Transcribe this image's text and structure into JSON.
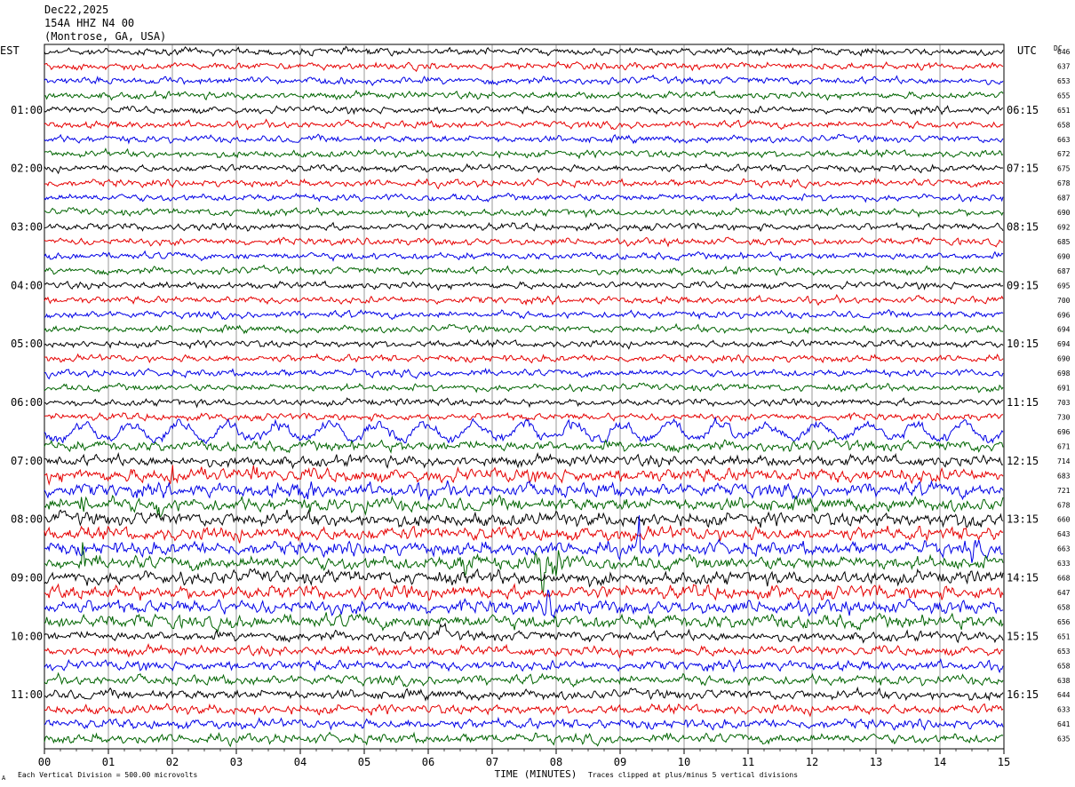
{
  "header": {
    "date": "Dec22,2025",
    "station": "154A HHZ N4 00",
    "location": "(Montrose, GA, USA)"
  },
  "left_timezone": "EST",
  "right_timezone": "UTC",
  "dc_label": "DC",
  "footer": {
    "scale_note": "Each Vertical Division =  500.00 microvolts",
    "clip_note": "Traces clipped at plus/minus 5 vertical divisions",
    "corner_mark": "A"
  },
  "chart_data": {
    "type": "line",
    "title": "",
    "xlabel": "TIME (MINUTES)",
    "ylabel": "",
    "x_ticks": [
      "00",
      "01",
      "02",
      "03",
      "04",
      "05",
      "06",
      "07",
      "08",
      "09",
      "10",
      "11",
      "12",
      "13",
      "14",
      "15"
    ],
    "xlim": [
      0,
      15
    ],
    "grid": true,
    "trace_colors": [
      "#000000",
      "#e60000",
      "#0000e6",
      "#006400"
    ],
    "left_hour_labels": [
      "01:00",
      "02:00",
      "03:00",
      "04:00",
      "05:00",
      "06:00",
      "07:00",
      "08:00",
      "09:00",
      "10:00",
      "11:00"
    ],
    "right_hour_labels": [
      "06:15",
      "07:15",
      "08:15",
      "09:15",
      "10:15",
      "11:15",
      "12:15",
      "13:15",
      "14:15",
      "15:15",
      "16:15"
    ],
    "dc_offsets": [
      646,
      637,
      653,
      655,
      651,
      658,
      663,
      672,
      675,
      678,
      687,
      690,
      692,
      685,
      690,
      687,
      695,
      700,
      696,
      694,
      694,
      690,
      698,
      691,
      703,
      730,
      696,
      671,
      714,
      683,
      721,
      678,
      660,
      643,
      663,
      633,
      668,
      647,
      658,
      656,
      651,
      653,
      658,
      638,
      644,
      633,
      641,
      635
    ]
  }
}
